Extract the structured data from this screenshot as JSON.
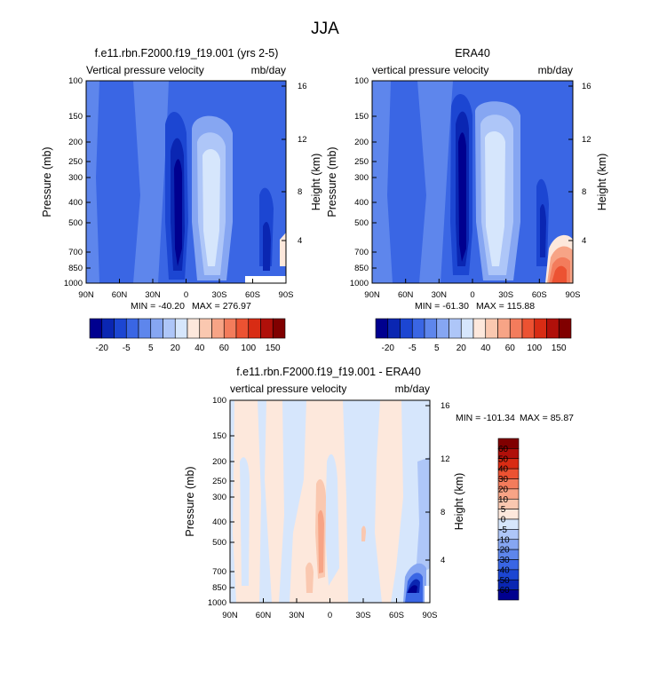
{
  "figure": {
    "title": "JJA"
  },
  "chart_data": [
    {
      "type": "heatmap",
      "title": "f.e11.rbn.F2000.f19_f19.001 (yrs 2-5)",
      "left_string": "Vertical pressure velocity",
      "right_string": "mb/day",
      "ylabel": "Pressure (mb)",
      "y2label": "Height (km)",
      "x_ticks": [
        "90N",
        "60N",
        "30N",
        "0",
        "30S",
        "60S",
        "90S"
      ],
      "x_values": [
        90,
        60,
        30,
        0,
        -30,
        -60,
        -90
      ],
      "y_ticks": [
        "100",
        "150",
        "200",
        "250",
        "300",
        "400",
        "500",
        "700",
        "850",
        "1000"
      ],
      "y_values": [
        100,
        150,
        200,
        250,
        300,
        400,
        500,
        700,
        850,
        1000
      ],
      "y2_ticks": [
        "16",
        "12",
        "8",
        "4"
      ],
      "y2_values": [
        16,
        12,
        8,
        4
      ],
      "ylim": [
        1000,
        100
      ],
      "min_label": "MIN = -40.20",
      "max_label": "MAX = 276.97",
      "min": -40.2,
      "max": 276.97,
      "colorbar_labels": [
        "-20",
        "-5",
        "5",
        "20",
        "40",
        "60",
        "100",
        "150"
      ],
      "colorbar_colors": [
        "#00008f",
        "#0a26b2",
        "#1c46d2",
        "#3a66e4",
        "#5e86ec",
        "#86a6f2",
        "#aec6f8",
        "#d6e6fc",
        "#fde8dc",
        "#fac8b0",
        "#f7a486",
        "#f37c5c",
        "#ec5232",
        "#d82c14",
        "#b0100a",
        "#800000"
      ]
    },
    {
      "type": "heatmap",
      "title": "ERA40",
      "left_string": "vertical pressure velocity",
      "right_string": "mb/day",
      "ylabel": "Pressure (mb)",
      "y2label": "Height (km)",
      "x_ticks": [
        "90N",
        "60N",
        "30N",
        "0",
        "30S",
        "60S",
        "90S"
      ],
      "x_values": [
        90,
        60,
        30,
        0,
        -30,
        -60,
        -90
      ],
      "y_ticks": [
        "100",
        "150",
        "200",
        "250",
        "300",
        "400",
        "500",
        "700",
        "850",
        "1000"
      ],
      "y_values": [
        100,
        150,
        200,
        250,
        300,
        400,
        500,
        700,
        850,
        1000
      ],
      "y2_ticks": [
        "16",
        "12",
        "8",
        "4"
      ],
      "y2_values": [
        16,
        12,
        8,
        4
      ],
      "ylim": [
        1000,
        100
      ],
      "min_label": "MIN = -61.30",
      "max_label": "MAX = 115.88",
      "min": -61.3,
      "max": 115.88,
      "colorbar_labels": [
        "-20",
        "-5",
        "5",
        "20",
        "40",
        "60",
        "100",
        "150"
      ],
      "colorbar_colors": [
        "#00008f",
        "#0a26b2",
        "#1c46d2",
        "#3a66e4",
        "#5e86ec",
        "#86a6f2",
        "#aec6f8",
        "#d6e6fc",
        "#fde8dc",
        "#fac8b0",
        "#f7a486",
        "#f37c5c",
        "#ec5232",
        "#d82c14",
        "#b0100a",
        "#800000"
      ]
    },
    {
      "type": "heatmap",
      "title": "f.e11.rbn.F2000.f19_f19.001 - ERA40",
      "left_string": "vertical pressure velocity",
      "right_string": "mb/day",
      "ylabel": "Pressure (mb)",
      "y2label": "Height (km)",
      "x_ticks": [
        "90N",
        "60N",
        "30N",
        "0",
        "30S",
        "60S",
        "90S"
      ],
      "x_values": [
        90,
        60,
        30,
        0,
        -30,
        -60,
        -90
      ],
      "y_ticks": [
        "100",
        "150",
        "200",
        "250",
        "300",
        "400",
        "500",
        "700",
        "850",
        "1000"
      ],
      "y_values": [
        100,
        150,
        200,
        250,
        300,
        400,
        500,
        700,
        850,
        1000
      ],
      "y2_ticks": [
        "16",
        "12",
        "8",
        "4"
      ],
      "y2_values": [
        16,
        12,
        8,
        4
      ],
      "ylim": [
        1000,
        100
      ],
      "min_label": "MIN = -101.34",
      "max_label": "MAX =  85.87",
      "min": -101.34,
      "max": 85.87,
      "colorbar_labels": [
        "60",
        "50",
        "40",
        "30",
        "20",
        "10",
        "5",
        "0",
        "-5",
        "-10",
        "-20",
        "-30",
        "-40",
        "-50",
        "-60"
      ],
      "colorbar_colors": [
        "#800000",
        "#b0100a",
        "#d82c14",
        "#ec5232",
        "#f37c5c",
        "#f7a486",
        "#fac8b0",
        "#fde8dc",
        "#d6e6fc",
        "#aec6f8",
        "#86a6f2",
        "#5e86ec",
        "#3a66e4",
        "#1c46d2",
        "#0a26b2",
        "#00008f"
      ]
    }
  ]
}
